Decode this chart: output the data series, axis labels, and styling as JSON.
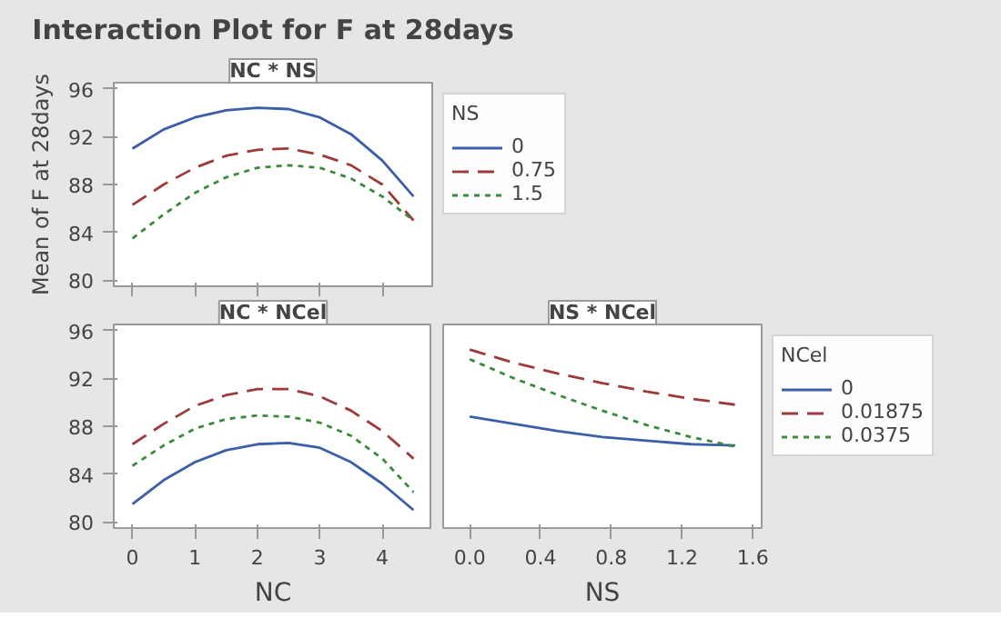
{
  "chart_data": [
    {
      "type": "line",
      "title": "Interaction Plot for F at 28days",
      "subtitle": "NC * NS",
      "ylabel": "Mean of F at 28days",
      "legend_title": "NS",
      "legend": "right",
      "tick_labels": "y",
      "grid": false,
      "x": [
        0,
        0.5,
        1,
        1.5,
        2,
        2.5,
        3,
        3.5,
        4,
        4.5
      ],
      "xlim": [
        -0.3,
        4.8
      ],
      "xticks": [
        0,
        1,
        2,
        3,
        4
      ],
      "ylim": [
        79.5,
        96.5
      ],
      "yticks": [
        80,
        84,
        88,
        92,
        96
      ],
      "series": [
        {
          "name": "0",
          "color": "#3b5ea6",
          "line_style": "solid",
          "values": [
            91,
            92.6,
            93.6,
            94.2,
            94.4,
            94.3,
            93.6,
            92.2,
            90,
            87
          ]
        },
        {
          "name": "0.75",
          "color": "#9e3a3a",
          "line_style": "dashed",
          "values": [
            86.3,
            88,
            89.4,
            90.4,
            90.9,
            91,
            90.5,
            89.6,
            88,
            85
          ]
        },
        {
          "name": "1.5",
          "color": "#3b8a3b",
          "line_style": "dotted",
          "values": [
            83.5,
            85.5,
            87.3,
            88.6,
            89.4,
            89.6,
            89.4,
            88.5,
            87,
            85
          ]
        }
      ]
    },
    {
      "type": "line",
      "title": "NC * NCel",
      "xlabel": "NC",
      "grid": false,
      "x": [
        0,
        0.5,
        1,
        1.5,
        2,
        2.5,
        3,
        3.5,
        4,
        4.5
      ],
      "xlim": [
        -0.3,
        4.8
      ],
      "xticks": [
        0,
        1,
        2,
        3,
        4
      ],
      "ylim": [
        79.5,
        96.5
      ],
      "yticks": [
        80,
        84,
        88,
        92,
        96
      ],
      "series": [
        {
          "color": "#3b5ea6",
          "line_style": "solid",
          "values": [
            81.5,
            83.5,
            85,
            86,
            86.5,
            86.6,
            86.2,
            85,
            83.2,
            81
          ]
        },
        {
          "color": "#9e3a3a",
          "line_style": "dashed",
          "values": [
            86.5,
            88.2,
            89.7,
            90.6,
            91.1,
            91.1,
            90.5,
            89.3,
            87.6,
            85.3
          ]
        },
        {
          "color": "#3b8a3b",
          "line_style": "dotted",
          "values": [
            84.7,
            86.4,
            87.8,
            88.6,
            88.9,
            88.8,
            88.3,
            87.2,
            85.3,
            82.5
          ]
        }
      ]
    },
    {
      "type": "line",
      "title": "NS * NCel",
      "xlabel": "NS",
      "legend_title": "NCel",
      "legend": "right",
      "tick_labels": "x",
      "grid": false,
      "x": [
        0,
        0.25,
        0.5,
        0.75,
        1,
        1.25,
        1.5
      ],
      "xlim": [
        -0.15,
        1.65
      ],
      "xticks": [
        {
          "value": 0,
          "label": "0.0"
        },
        0.4,
        0.8,
        1.2,
        1.6
      ],
      "ylim": [
        79.5,
        96.5
      ],
      "yticks": [
        80,
        84,
        88,
        92,
        96
      ],
      "series": [
        {
          "name": "0",
          "color": "#3b5ea6",
          "line_style": "solid",
          "values": [
            88.8,
            88.2,
            87.6,
            87.1,
            86.8,
            86.5,
            86.4
          ]
        },
        {
          "name": "0.01875",
          "color": "#9e3a3a",
          "line_style": "dashed",
          "values": [
            94.4,
            93.3,
            92.4,
            91.6,
            90.9,
            90.3,
            89.8
          ]
        },
        {
          "name": "0.0375",
          "color": "#3b8a3b",
          "line_style": "dotted",
          "values": [
            93.6,
            92,
            90.6,
            89.3,
            88.1,
            87.1,
            86.3
          ]
        }
      ]
    }
  ]
}
